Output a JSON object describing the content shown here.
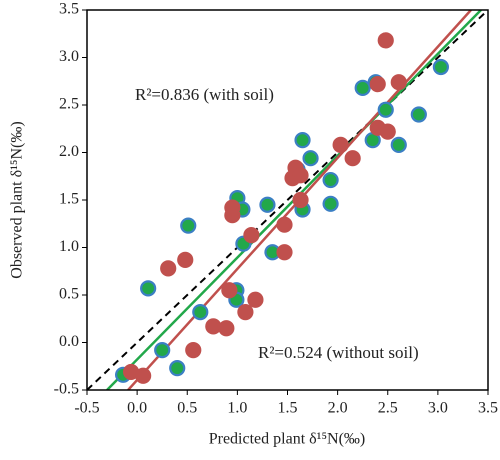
{
  "chart_data": {
    "type": "scatter",
    "x_label": "Predicted plant δ¹⁵N(‰)",
    "y_label": "Observed plant δ¹⁵N(‰)",
    "annotations": [
      "R²=0.836 (with soil)",
      "R²=0.524 (without soil)"
    ],
    "xlim": [
      -0.5,
      3.5
    ],
    "ylim": [
      -0.5,
      3.5
    ],
    "xticks": [
      -0.5,
      {
        "value": 0,
        "label": "0.0"
      },
      0.5,
      {
        "value": 1,
        "label": "1.0"
      },
      1.5,
      {
        "value": 2,
        "label": "2.0"
      },
      2.5,
      {
        "value": 3,
        "label": "3.0"
      },
      3.5
    ],
    "yticks": [
      -0.5,
      {
        "value": 0,
        "label": "0.0"
      },
      0.5,
      {
        "value": 1,
        "label": "1.0"
      },
      1.5,
      {
        "value": 2,
        "label": "2.0"
      },
      2.5,
      {
        "value": 3,
        "label": "3.0"
      },
      3.5
    ],
    "series": [
      {
        "color": "#22a84a",
        "edgecolor": "#3b7fc4",
        "x": [
          0.11,
          0.51,
          1.0,
          1.05,
          1.06,
          0.99,
          0.99,
          0.63,
          -0.14,
          0.25,
          0.4,
          1.3,
          1.35,
          1.6,
          1.65,
          1.65,
          1.73,
          1.93,
          1.93,
          2.25,
          2.38,
          2.35,
          2.48,
          2.61,
          2.81,
          3.03
        ],
        "values": [
          0.57,
          1.23,
          1.52,
          1.4,
          1.04,
          0.55,
          0.45,
          0.32,
          -0.34,
          -0.08,
          -0.27,
          1.45,
          0.95,
          1.82,
          2.13,
          1.4,
          1.94,
          1.71,
          1.46,
          2.68,
          2.74,
          2.13,
          2.45,
          2.08,
          2.4,
          2.9
        ]
      },
      {
        "color": "#c0504d",
        "edgecolor": "#c0504d",
        "x": [
          -0.06,
          0.06,
          0.31,
          0.48,
          0.56,
          0.76,
          0.89,
          0.92,
          0.95,
          0.95,
          1.08,
          1.14,
          1.18,
          1.47,
          1.47,
          1.55,
          1.58,
          1.63,
          1.63,
          2.03,
          2.15,
          2.4,
          2.4,
          2.48,
          2.5,
          2.61
        ],
        "values": [
          -0.31,
          -0.35,
          0.78,
          0.87,
          -0.08,
          0.17,
          0.15,
          0.55,
          1.34,
          1.42,
          0.32,
          1.13,
          0.45,
          0.95,
          1.24,
          1.73,
          1.84,
          1.76,
          1.5,
          2.08,
          1.94,
          2.72,
          2.26,
          3.18,
          2.22,
          2.74
        ]
      }
    ],
    "lines": [
      {
        "color": "#000000",
        "dashed": true,
        "x": [
          -0.5,
          3.5
        ],
        "values": [
          -0.5,
          3.5
        ]
      },
      {
        "color": "#22a84a",
        "dashed": false,
        "x": [
          -0.3,
          3.43
        ],
        "values": [
          -0.5,
          3.5
        ]
      },
      {
        "color": "#c0504d",
        "dashed": false,
        "x": [
          -0.09,
          3.33
        ],
        "values": [
          -0.5,
          3.5
        ]
      }
    ]
  }
}
